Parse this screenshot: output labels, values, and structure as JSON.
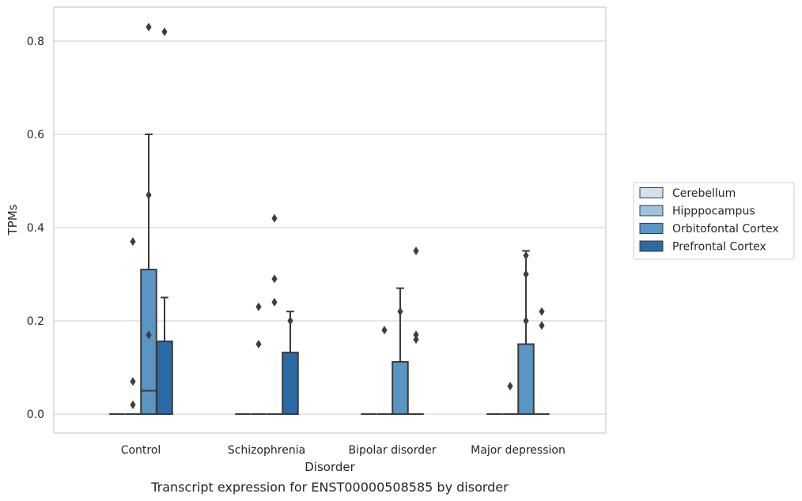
{
  "caption": "Transcript expression for ENST00000508585 by disorder",
  "chart_data": {
    "type": "box",
    "xlabel": "Disorder",
    "ylabel": "TPMs",
    "ylim": [
      -0.04,
      0.875
    ],
    "yticks": [
      "0.0",
      "0.2",
      "0.4",
      "0.6",
      "0.8"
    ],
    "ytick_values": [
      0.0,
      0.2,
      0.4,
      0.6,
      0.8
    ],
    "grid": true,
    "legend_position": "right",
    "categories": [
      "Control",
      "Schizophrenia",
      "Bipolar disorder",
      "Major depression"
    ],
    "series": [
      {
        "name": "Cerebellum",
        "color": "#d2e1f0",
        "boxes": [
          {
            "q1": 0,
            "median": 0,
            "q3": 0,
            "whislo": 0,
            "whishi": 0,
            "fliers": []
          },
          {
            "q1": 0,
            "median": 0,
            "q3": 0,
            "whislo": 0,
            "whishi": 0,
            "fliers": []
          },
          {
            "q1": 0,
            "median": 0,
            "q3": 0,
            "whislo": 0,
            "whishi": 0,
            "fliers": []
          },
          {
            "q1": 0,
            "median": 0,
            "q3": 0,
            "whislo": 0,
            "whishi": 0,
            "fliers": []
          }
        ]
      },
      {
        "name": "Hipppocampus",
        "color": "#9ac4df",
        "boxes": [
          {
            "q1": 0,
            "median": 0,
            "q3": 0,
            "whislo": 0,
            "whishi": 0,
            "fliers": [
              0.37,
              0.07,
              0.02
            ]
          },
          {
            "q1": 0,
            "median": 0,
            "q3": 0,
            "whislo": 0,
            "whishi": 0,
            "fliers": [
              0.23,
              0.15
            ]
          },
          {
            "q1": 0,
            "median": 0,
            "q3": 0,
            "whislo": 0,
            "whishi": 0,
            "fliers": [
              0.18
            ]
          },
          {
            "q1": 0,
            "median": 0,
            "q3": 0,
            "whislo": 0,
            "whishi": 0,
            "fliers": [
              0.06
            ]
          }
        ]
      },
      {
        "name": "Orbitofontal Cortex",
        "color": "#5a96c3",
        "boxes": [
          {
            "q1": 0,
            "median": 0.05,
            "q3": 0.31,
            "whislo": 0,
            "whishi": 0.6,
            "fliers": [
              0.83,
              0.47,
              0.17
            ]
          },
          {
            "q1": 0,
            "median": 0,
            "q3": 0,
            "whislo": 0,
            "whishi": 0,
            "fliers": [
              0.42,
              0.29,
              0.24
            ]
          },
          {
            "q1": 0,
            "median": 0,
            "q3": 0.112,
            "whislo": 0,
            "whishi": 0.27,
            "fliers": [
              0.22
            ]
          },
          {
            "q1": 0,
            "median": 0,
            "q3": 0.15,
            "whislo": 0,
            "whishi": 0.35,
            "fliers": [
              0.34,
              0.3,
              0.2
            ]
          }
        ]
      },
      {
        "name": "Prefrontal Cortex",
        "color": "#2b6aa6",
        "boxes": [
          {
            "q1": 0,
            "median": 0,
            "q3": 0.156,
            "whislo": 0,
            "whishi": 0.25,
            "fliers": [
              0.82
            ]
          },
          {
            "q1": 0,
            "median": 0,
            "q3": 0.132,
            "whislo": 0,
            "whishi": 0.22,
            "fliers": [
              0.2
            ]
          },
          {
            "q1": 0,
            "median": 0,
            "q3": 0,
            "whislo": 0,
            "whishi": 0,
            "fliers": [
              0.35,
              0.17,
              0.16
            ]
          },
          {
            "q1": 0,
            "median": 0,
            "q3": 0,
            "whislo": 0,
            "whishi": 0,
            "fliers": [
              0.22,
              0.19
            ]
          }
        ]
      }
    ]
  }
}
